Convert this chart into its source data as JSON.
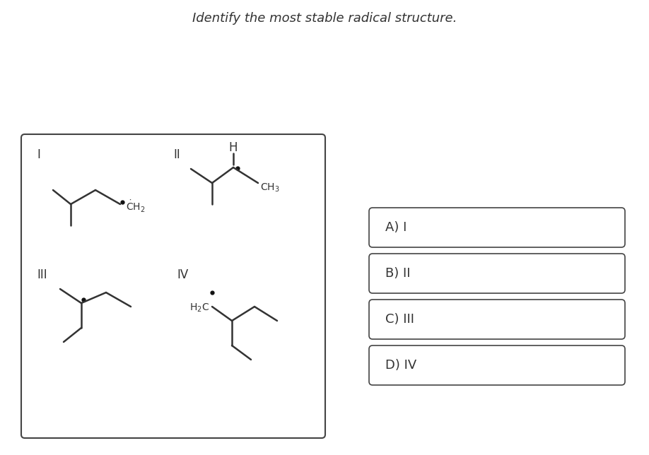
{
  "title": "Identify the most stable radical structure.",
  "title_fontsize": 13,
  "title_color": "#333333",
  "bg_color": "#ffffff",
  "box_color": "#444444",
  "answer_options": [
    "A) I",
    "B) II",
    "C) III",
    "D) IV"
  ],
  "line_color": "#333333",
  "radical_dot_color": "#111111",
  "line_width": 1.8
}
